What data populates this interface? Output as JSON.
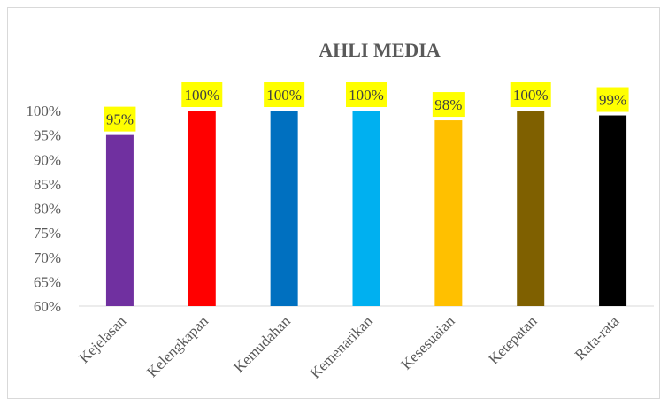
{
  "chart_data": {
    "type": "bar",
    "title": "AHLI MEDIA",
    "xlabel": "",
    "ylabel": "",
    "categories": [
      "Kejelasan",
      "Kelengkapan",
      "Kemudahan",
      "Kemenarikan",
      "Kesesuaian",
      "Ketepatan",
      "Rata-rata"
    ],
    "values": [
      95,
      100,
      100,
      100,
      98,
      100,
      99
    ],
    "data_labels": [
      "95%",
      "100%",
      "100%",
      "100%",
      "98%",
      "100%",
      "99%"
    ],
    "bar_colors": [
      "#7030a0",
      "#ff0000",
      "#0070c0",
      "#00b0f0",
      "#ffc000",
      "#7f6000",
      "#000000"
    ],
    "label_background": "#ffff00",
    "ylim": [
      60,
      100
    ],
    "yticks": [
      "60%",
      "65%",
      "70%",
      "75%",
      "80%",
      "85%",
      "90%",
      "95%",
      "100%"
    ],
    "grid": false,
    "legend": "none"
  }
}
